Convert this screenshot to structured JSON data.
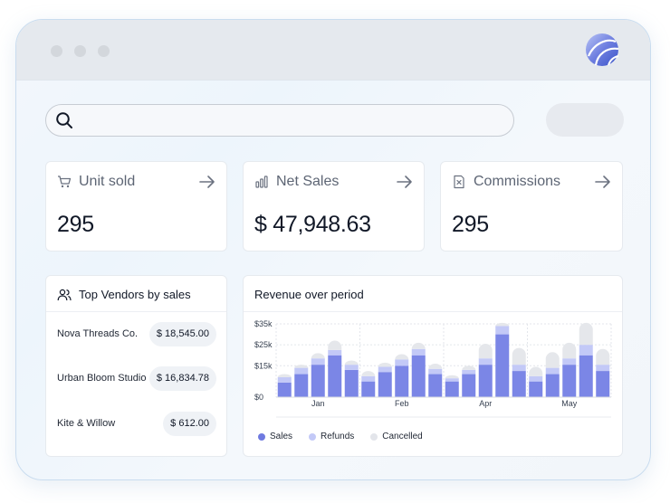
{
  "window": {
    "controls": [
      "close",
      "minimize",
      "maximize"
    ],
    "logo_icon": "sphere-logo-icon"
  },
  "search": {
    "icon": "search-icon",
    "value": "",
    "placeholder": ""
  },
  "stats": [
    {
      "id": "unit-sold",
      "icon": "cart-icon",
      "label": "Unit sold",
      "value": "295"
    },
    {
      "id": "net-sales",
      "icon": "bar-chart-icon",
      "label": "Net Sales",
      "value": "$ 47,948.63"
    },
    {
      "id": "commissions",
      "icon": "receipt-icon",
      "label": "Commissions",
      "value": "295"
    }
  ],
  "vendors": {
    "title": "Top Vendors by sales",
    "icon": "users-icon",
    "items": [
      {
        "name": "Nova Threads Co.",
        "amount": "$ 18,545.00"
      },
      {
        "name": "Urban Bloom Studio",
        "amount": "$ 16,834.78"
      },
      {
        "name": "Kite & Willow",
        "amount": "$ 612.00"
      }
    ]
  },
  "chart_data": {
    "type": "bar",
    "stacked": true,
    "title": "Revenue over period",
    "ylim": [
      0,
      35000
    ],
    "y_ticks": [
      0,
      15000,
      25000,
      35000
    ],
    "y_tick_labels": [
      "$0",
      "$15k",
      "$25k",
      "$35k"
    ],
    "x_tick_labels": [
      {
        "label": "Jan",
        "at_index": 2
      },
      {
        "label": "Feb",
        "at_index": 7
      },
      {
        "label": "Apr",
        "at_index": 12
      },
      {
        "label": "May",
        "at_index": 17
      }
    ],
    "grid": true,
    "legend_position": "bottom-left",
    "colors": {
      "Sales": "#7b86e6",
      "Refunds": "#c3c9f7",
      "Cancelled": "#e5e7eb"
    },
    "series": [
      {
        "name": "Sales",
        "values": [
          7000,
          11000,
          15500,
          20000,
          13000,
          7500,
          12000,
          15000,
          20000,
          11000,
          7500,
          11000,
          15500,
          30000,
          12500,
          7500,
          11000,
          15500,
          20000,
          12500
        ]
      },
      {
        "name": "Refunds",
        "values": [
          2500,
          3000,
          3000,
          2500,
          2500,
          2500,
          2500,
          3000,
          3000,
          2500,
          1500,
          2000,
          3000,
          4000,
          3000,
          2500,
          3000,
          3000,
          5000,
          3000
        ]
      },
      {
        "name": "Cancelled",
        "values": [
          1500,
          1500,
          2500,
          4500,
          2000,
          2500,
          2000,
          2500,
          3000,
          2500,
          1500,
          2000,
          7000,
          1500,
          8000,
          4500,
          7500,
          7500,
          10500,
          7500
        ]
      }
    ]
  }
}
